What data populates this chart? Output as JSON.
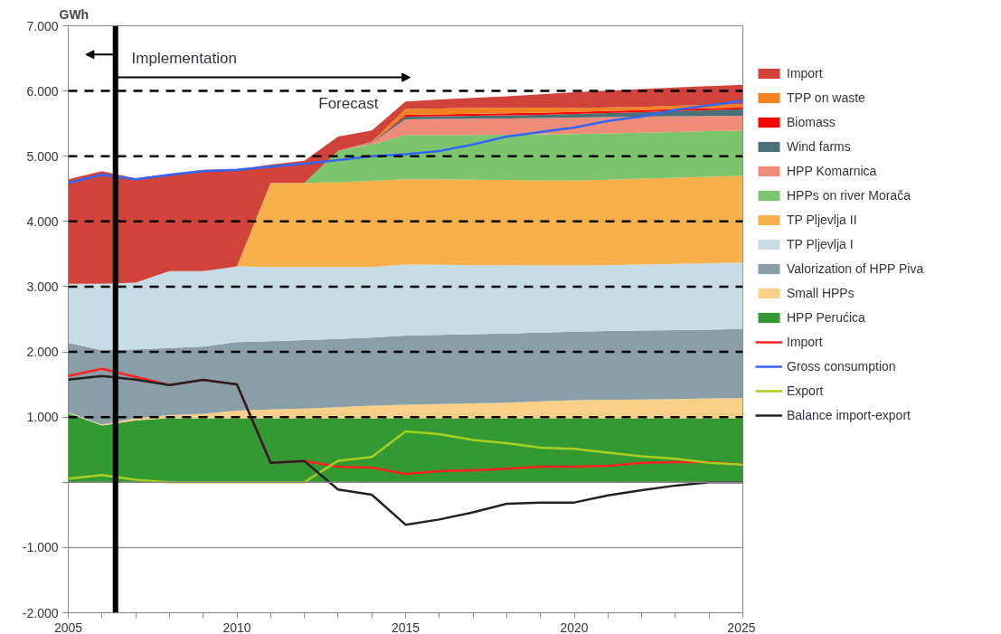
{
  "chart_data": {
    "type": "area",
    "stacked": true,
    "ylabel": "GWh",
    "x": [
      2005,
      2006,
      2007,
      2008,
      2009,
      2010,
      2011,
      2012,
      2013,
      2014,
      2015,
      2016,
      2017,
      2018,
      2019,
      2020,
      2021,
      2022,
      2023,
      2024,
      2025
    ],
    "xlim": [
      2005,
      2025
    ],
    "xticks": [
      2005,
      {
        "value": 2006,
        "label": null
      },
      {
        "value": 2007,
        "label": null
      },
      {
        "value": 2008,
        "label": null
      },
      {
        "value": 2009,
        "label": null
      },
      2010,
      {
        "value": 2011,
        "label": null
      },
      {
        "value": 2012,
        "label": null
      },
      {
        "value": 2013,
        "label": null
      },
      {
        "value": 2014,
        "label": null
      },
      2015,
      {
        "value": 2016,
        "label": null
      },
      {
        "value": 2017,
        "label": null
      },
      {
        "value": 2018,
        "label": null
      },
      {
        "value": 2019,
        "label": null
      },
      2020,
      {
        "value": 2021,
        "label": null
      },
      {
        "value": 2022,
        "label": null
      },
      {
        "value": 2023,
        "label": null
      },
      {
        "value": 2024,
        "label": null
      },
      2025
    ],
    "ylim": [
      -2000,
      7000
    ],
    "yticks": [
      {
        "value": -2000,
        "label": "-2.000"
      },
      {
        "value": -1000,
        "label": "-1.000"
      },
      {
        "value": 0,
        "label": null
      },
      {
        "value": 1000,
        "label": "1.000"
      },
      {
        "value": 2000,
        "label": "2.000"
      },
      {
        "value": 3000,
        "label": "3.000"
      },
      {
        "value": 4000,
        "label": "4.000"
      },
      {
        "value": 5000,
        "label": "5.000"
      },
      {
        "value": 6000,
        "label": "6.000"
      },
      {
        "value": 7000,
        "label": "7.000"
      }
    ],
    "grid": false,
    "legend": "right",
    "series": [
      {
        "name": "HPP Perućica",
        "color": "#339933",
        "values": [
          1060,
          870,
          950,
          980,
          980,
          980,
          980,
          980,
          980,
          980,
          980,
          980,
          980,
          980,
          980,
          980,
          980,
          980,
          980,
          980,
          980
        ]
      },
      {
        "name": "Small HPPs",
        "color": "#fad088",
        "values": [
          10,
          15,
          30,
          50,
          70,
          120,
          135,
          150,
          170,
          195,
          210,
          220,
          230,
          240,
          260,
          280,
          285,
          290,
          295,
          305,
          310
        ]
      },
      {
        "name": "Valorization of HPP Piva",
        "color": "#8a9ea8",
        "values": [
          1068,
          1140,
          1060,
          1030,
          1030,
          1050,
          1050,
          1050,
          1050,
          1045,
          1060,
          1060,
          1060,
          1060,
          1055,
          1050,
          1053,
          1056,
          1059,
          1057,
          1060
        ]
      },
      {
        "name": "TP Pljevlja I",
        "color": "#c8dce6",
        "values": [
          907,
          1020,
          1020,
          1180,
          1160,
          1160,
          1135,
          1120,
          1100,
          1080,
          1090,
          1075,
          1060,
          1050,
          1030,
          1015,
          1012,
          1014,
          1016,
          1018,
          1020
        ]
      },
      {
        "name": "TP Pljevlja II",
        "color": "#f8b04c",
        "values": [
          0,
          0,
          0,
          0,
          0,
          0,
          1290,
          1290,
          1300,
          1320,
          1305,
          1310,
          1310,
          1305,
          1305,
          1305,
          1310,
          1315,
          1320,
          1325,
          1330
        ]
      },
      {
        "name": "HPPs on river Morača",
        "color": "#7dc56c",
        "values": [
          0,
          0,
          0,
          0,
          0,
          0,
          0,
          0,
          483,
          560,
          679,
          680,
          685,
          695,
          705,
          710,
          710,
          705,
          700,
          700,
          695
        ]
      },
      {
        "name": "HPP Komarnica",
        "color": "#ef8c7a",
        "values": [
          0,
          0,
          0,
          0,
          0,
          0,
          0,
          0,
          0,
          20,
          241,
          245,
          250,
          250,
          250,
          253,
          250,
          246,
          242,
          231,
          225
        ]
      },
      {
        "name": "Wind farms",
        "color": "#4a7078",
        "values": [
          0,
          0,
          0,
          0,
          0,
          0,
          0,
          0,
          0,
          10,
          40,
          42,
          45,
          47,
          50,
          55,
          62,
          70,
          80,
          90,
          100
        ]
      },
      {
        "name": "Biomass",
        "color": "#ff0000",
        "values": [
          0,
          0,
          0,
          0,
          0,
          0,
          0,
          0,
          0,
          0,
          30,
          30,
          30,
          30,
          30,
          30,
          30,
          30,
          30,
          30,
          30
        ]
      },
      {
        "name": "TPP on waste",
        "color": "#f58220",
        "values": [
          0,
          0,
          0,
          0,
          0,
          0,
          0,
          0,
          0,
          10,
          90,
          90,
          90,
          85,
          80,
          60,
          55,
          50,
          50,
          50,
          45
        ]
      },
      {
        "name": "Import",
        "color": "#d0433a",
        "values": [
          1600,
          1725,
          1600,
          1490,
          1550,
          1490,
          280,
          340,
          217,
          175,
          115,
          138,
          155,
          178,
          205,
          243,
          258,
          274,
          283,
          289,
          300
        ]
      },
      {
        "name": "Import",
        "type": "line",
        "color": "#ff2020",
        "values": [
          1630,
          1740,
          1615,
          1490,
          1570,
          1500,
          300,
          325,
          240,
          225,
          130,
          170,
          185,
          210,
          240,
          240,
          255,
          300,
          310,
          310,
          270
        ]
      },
      {
        "name": "Gross consumption",
        "type": "line",
        "color": "#3366ff",
        "values": [
          4590,
          4715,
          4645,
          4715,
          4770,
          4790,
          4840,
          4885,
          4940,
          5000,
          5030,
          5080,
          5180,
          5300,
          5370,
          5440,
          5540,
          5610,
          5710,
          5780,
          5850
        ]
      },
      {
        "name": "Export",
        "type": "line",
        "color": "#a8d020",
        "values": [
          55,
          110,
          40,
          0,
          0,
          0,
          0,
          0,
          330,
          390,
          780,
          740,
          650,
          600,
          530,
          515,
          455,
          400,
          360,
          300,
          270
        ]
      },
      {
        "name": "Balance import-export",
        "type": "line",
        "color": "#222222",
        "values": [
          1575,
          1630,
          1575,
          1490,
          1570,
          1500,
          300,
          325,
          -110,
          -190,
          -650,
          -570,
          -460,
          -330,
          -310,
          -310,
          -200,
          -120,
          -50,
          0,
          0
        ]
      }
    ],
    "ref_lines": [
      {
        "axis": "y",
        "value": 1000,
        "label": null,
        "color": "#000000",
        "line_style": "dashed"
      },
      {
        "axis": "y",
        "value": 2000,
        "label": null,
        "color": "#000000",
        "line_style": "dashed"
      },
      {
        "axis": "y",
        "value": 3000,
        "label": null,
        "color": "#000000",
        "line_style": "dashed"
      },
      {
        "axis": "y",
        "value": 4000,
        "label": null,
        "color": "#000000",
        "line_style": "dashed"
      },
      {
        "axis": "y",
        "value": 5000,
        "label": null,
        "color": "#000000",
        "line_style": "dashed"
      },
      {
        "axis": "y",
        "value": 6000,
        "label": null,
        "color": "#000000",
        "line_style": "dashed"
      },
      {
        "axis": "y",
        "value": -1000,
        "label": null,
        "color": "#999999",
        "line_style": "solid"
      },
      {
        "axis": "y",
        "value": 0,
        "label": null,
        "color": "#888888",
        "line_style": "solid"
      },
      {
        "axis": "x",
        "value": 2006.4,
        "label": null,
        "color": "#000000",
        "line_style": "solid"
      }
    ],
    "annotations": [
      "Implementation",
      "Forecast"
    ]
  }
}
